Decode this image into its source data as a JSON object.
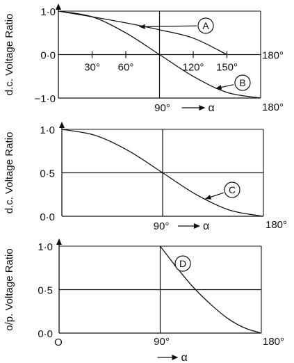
{
  "chart_data": [
    {
      "type": "line",
      "ylabel": "d.c. Voltage Ratio",
      "xlabel": "α",
      "xlim": [
        0,
        180
      ],
      "ylim": [
        -1,
        1
      ],
      "ytick_labels": [
        "1·0",
        "0·0",
        "−1·0"
      ],
      "inner_tick_labels": [
        "30°",
        "60°",
        "120°",
        "150°"
      ],
      "right_labels": {
        "mid": "180°",
        "bottom": "180°"
      },
      "center_label": "90°",
      "series": [
        {
          "name": "A",
          "x": [
            0,
            30,
            60,
            90,
            120,
            150
          ],
          "y": [
            1.0,
            0.87,
            0.73,
            0.57,
            0.38,
            0.0
          ]
        },
        {
          "name": "B",
          "x": [
            0,
            30,
            60,
            90,
            120,
            150,
            180
          ],
          "y": [
            1.0,
            0.87,
            0.5,
            0.0,
            -0.5,
            -0.87,
            -1.0
          ]
        }
      ]
    },
    {
      "type": "line",
      "ylabel": "d.c. Voltage Ratio",
      "xlabel": "α",
      "xlim": [
        0,
        180
      ],
      "ylim": [
        0,
        1
      ],
      "ytick_labels": [
        "1·0",
        "0·5",
        "0·0"
      ],
      "center_label": "90°",
      "right_label": "180°",
      "series": [
        {
          "name": "C",
          "x": [
            0,
            30,
            60,
            90,
            120,
            150,
            180
          ],
          "y": [
            1.0,
            0.93,
            0.75,
            0.5,
            0.25,
            0.07,
            0.0
          ]
        }
      ]
    },
    {
      "type": "line",
      "ylabel": "o/p. Voltage Ratio",
      "xlabel": "α",
      "xlim": [
        0,
        180
      ],
      "ylim": [
        0,
        1
      ],
      "ytick_labels": [
        "1·0",
        "0·5",
        "0·0"
      ],
      "origin_label": "O",
      "center_label": "90°",
      "right_label": "180°",
      "series": [
        {
          "name": "D",
          "x": [
            90,
            105,
            120,
            135,
            150,
            165,
            180
          ],
          "y": [
            1.0,
            0.75,
            0.52,
            0.33,
            0.17,
            0.06,
            0.0
          ]
        }
      ]
    }
  ]
}
